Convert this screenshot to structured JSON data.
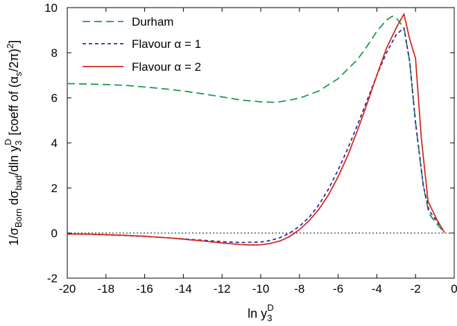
{
  "chart_data": {
    "type": "line",
    "title": "",
    "xlabel": "ln y3D",
    "ylabel": "1/σBorn dσbad/dln y3D  [coeff of (αs/2π)²]",
    "xlim": [
      -20,
      0
    ],
    "ylim": [
      -2,
      10
    ],
    "x_ticks": [
      -20,
      -18,
      -16,
      -14,
      -12,
      -10,
      -8,
      -6,
      -4,
      -2,
      0
    ],
    "y_ticks": [
      -2,
      0,
      2,
      4,
      6,
      8,
      10
    ],
    "grid": false,
    "legend_position": "top-left",
    "zero_line": true,
    "series": [
      {
        "name": "Durham",
        "style": "long-dash",
        "color": "#1a9a4a",
        "points": [
          [
            -20,
            6.63
          ],
          [
            -19,
            6.61
          ],
          [
            -18,
            6.59
          ],
          [
            -17,
            6.55
          ],
          [
            -16,
            6.48
          ],
          [
            -15,
            6.4
          ],
          [
            -14,
            6.3
          ],
          [
            -13,
            6.18
          ],
          [
            -12,
            6.04
          ],
          [
            -11,
            5.9
          ],
          [
            -10,
            5.82
          ],
          [
            -9.3,
            5.8
          ],
          [
            -9,
            5.82
          ],
          [
            -8,
            5.98
          ],
          [
            -7,
            6.3
          ],
          [
            -6,
            6.85
          ],
          [
            -5,
            7.7
          ],
          [
            -4.5,
            8.3
          ],
          [
            -4,
            8.95
          ],
          [
            -3.5,
            9.45
          ],
          [
            -3.2,
            9.62
          ],
          [
            -3.0,
            9.55
          ],
          [
            -2.6,
            9.1
          ],
          [
            -2.3,
            7.6
          ],
          [
            -2.0,
            4.9
          ],
          [
            -1.6,
            2.1
          ],
          [
            -1.3,
            0.85
          ],
          [
            -0.8,
            0.3
          ],
          [
            -0.5,
            0.03
          ]
        ]
      },
      {
        "name": "Flavour α = 1",
        "style": "short-dash",
        "color": "#2d2d9a",
        "points": [
          [
            -20,
            -0.04
          ],
          [
            -19,
            -0.05
          ],
          [
            -18,
            -0.08
          ],
          [
            -17,
            -0.11
          ],
          [
            -16,
            -0.15
          ],
          [
            -15,
            -0.2
          ],
          [
            -14,
            -0.26
          ],
          [
            -13,
            -0.32
          ],
          [
            -12,
            -0.38
          ],
          [
            -11,
            -0.42
          ],
          [
            -10,
            -0.4
          ],
          [
            -9.5,
            -0.33
          ],
          [
            -9,
            -0.2
          ],
          [
            -8.5,
            0.0
          ],
          [
            -8,
            0.3
          ],
          [
            -7.5,
            0.7
          ],
          [
            -7,
            1.25
          ],
          [
            -6.5,
            1.95
          ],
          [
            -6,
            2.8
          ],
          [
            -5.5,
            3.75
          ],
          [
            -5,
            4.8
          ],
          [
            -4.5,
            5.9
          ],
          [
            -4,
            7.0
          ],
          [
            -3.5,
            8.0
          ],
          [
            -3.0,
            8.8
          ],
          [
            -2.6,
            9.1
          ],
          [
            -2.3,
            7.6
          ],
          [
            -2.0,
            4.9
          ],
          [
            -1.6,
            2.1
          ],
          [
            -1.3,
            1.0
          ],
          [
            -0.8,
            0.4
          ],
          [
            -0.5,
            0.03
          ]
        ]
      },
      {
        "name": "Flavour α = 2",
        "style": "solid",
        "color": "#d42a1e",
        "points": [
          [
            -20,
            -0.04
          ],
          [
            -19,
            -0.05
          ],
          [
            -18,
            -0.07
          ],
          [
            -17,
            -0.1
          ],
          [
            -16,
            -0.14
          ],
          [
            -15,
            -0.2
          ],
          [
            -14,
            -0.27
          ],
          [
            -13,
            -0.35
          ],
          [
            -12,
            -0.44
          ],
          [
            -11,
            -0.51
          ],
          [
            -10.5,
            -0.53
          ],
          [
            -10,
            -0.52
          ],
          [
            -9.5,
            -0.46
          ],
          [
            -9,
            -0.35
          ],
          [
            -8.5,
            -0.15
          ],
          [
            -8,
            0.15
          ],
          [
            -7.5,
            0.55
          ],
          [
            -7,
            1.05
          ],
          [
            -6.5,
            1.7
          ],
          [
            -6,
            2.5
          ],
          [
            -5.5,
            3.45
          ],
          [
            -5,
            4.55
          ],
          [
            -4.5,
            5.75
          ],
          [
            -4,
            7.0
          ],
          [
            -3.5,
            8.2
          ],
          [
            -3.0,
            9.1
          ],
          [
            -2.6,
            9.72
          ],
          [
            -2.3,
            8.6
          ],
          [
            -2.0,
            7.75
          ],
          [
            -1.7,
            4.2
          ],
          [
            -1.35,
            1.4
          ],
          [
            -0.9,
            0.6
          ],
          [
            -0.5,
            0.02
          ]
        ]
      }
    ]
  }
}
